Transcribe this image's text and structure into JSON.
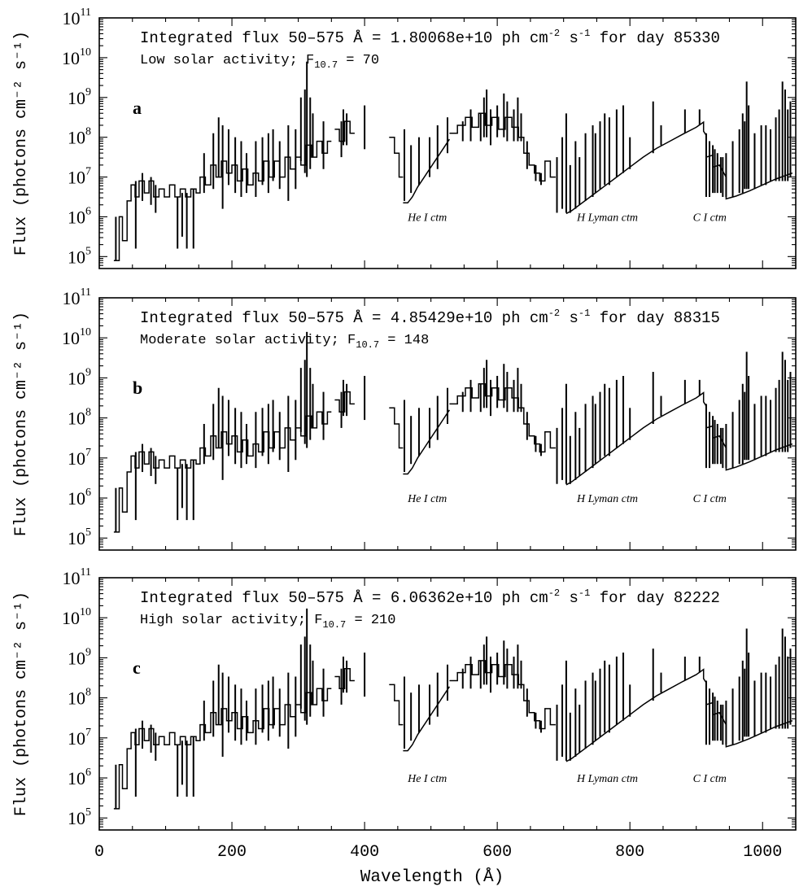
{
  "chart_data": {
    "type": "line",
    "xlabel": "Wavelength (Å)",
    "ylabel": "Flux (photons cm⁻² s⁻¹)",
    "xlim": [
      0,
      1050
    ],
    "ylim_log10": [
      4.7,
      11
    ],
    "y_scale": "log",
    "x_ticks": [
      0,
      200,
      400,
      600,
      800,
      1000
    ],
    "y_tick_exponents": [
      5,
      6,
      7,
      8,
      9,
      10,
      11
    ],
    "y_tick_base": "10",
    "grid": false,
    "panels": [
      {
        "letter": "a",
        "note_pre": "Integrated flux 50–575 Å = 1.80068e+10 ph cm",
        "note_exp1": "-2",
        "note_mid": " s",
        "note_exp2": "-1",
        "note_post": " for day 85330",
        "activity_pre": "Low solar activity; F",
        "activity_sub": "10.7",
        "activity_post": " = 70",
        "scale": 0.0,
        "labels": [
          {
            "text": "He I ctm",
            "x": 465,
            "y_log": 5.9
          },
          {
            "text": "H Lyman ctm",
            "x": 720,
            "y_log": 5.9
          },
          {
            "text": "C I ctm",
            "x": 895,
            "y_log": 5.9
          }
        ]
      },
      {
        "letter": "b",
        "note_pre": "Integrated flux 50–575 Å = 4.85429e+10 ph cm",
        "note_exp1": "-2",
        "note_mid": " s",
        "note_exp2": "-1",
        "note_post": " for day 88315",
        "activity_pre": "Moderate solar activity; F",
        "activity_sub": "10.7",
        "activity_post": " = 148",
        "scale": 0.25,
        "labels": [
          {
            "text": "He I ctm",
            "x": 465,
            "y_log": 5.9
          },
          {
            "text": "H Lyman ctm",
            "x": 720,
            "y_log": 5.9
          },
          {
            "text": "C I ctm",
            "x": 895,
            "y_log": 5.9
          }
        ]
      },
      {
        "letter": "c",
        "note_pre": "Integrated flux 50–575 Å = 6.06362e+10 ph cm",
        "note_exp1": "-2",
        "note_mid": " s",
        "note_exp2": "-1",
        "note_post": " for day 82222",
        "activity_pre": "High solar activity; F",
        "activity_sub": "10.7",
        "activity_post": " = 210",
        "scale": 0.33,
        "labels": [
          {
            "text": "He I ctm",
            "x": 465,
            "y_log": 5.9
          },
          {
            "text": "H Lyman ctm",
            "x": 720,
            "y_log": 5.9
          },
          {
            "text": "C I ctm",
            "x": 895,
            "y_log": 5.9
          }
        ]
      }
    ],
    "segments": [
      [
        [
          22,
          4.9
        ],
        [
          30,
          4.9
        ],
        [
          30,
          6.0
        ],
        [
          35,
          6.0
        ],
        [
          35,
          5.4
        ],
        [
          42,
          5.4
        ],
        [
          42,
          6.4
        ],
        [
          48,
          6.4
        ],
        [
          48,
          6.8
        ],
        [
          54,
          6.8
        ],
        [
          54,
          6.5
        ],
        [
          60,
          6.5
        ],
        [
          60,
          6.9
        ],
        [
          68,
          6.9
        ],
        [
          68,
          6.6
        ],
        [
          75,
          6.6
        ],
        [
          75,
          6.9
        ],
        [
          82,
          6.9
        ],
        [
          82,
          6.5
        ],
        [
          90,
          6.5
        ],
        [
          90,
          6.7
        ],
        [
          98,
          6.7
        ],
        [
          98,
          6.5
        ],
        [
          106,
          6.5
        ],
        [
          106,
          6.8
        ],
        [
          114,
          6.8
        ],
        [
          114,
          6.5
        ],
        [
          122,
          6.5
        ],
        [
          122,
          6.7
        ],
        [
          130,
          6.7
        ],
        [
          130,
          6.5
        ],
        [
          138,
          6.5
        ],
        [
          138,
          6.7
        ],
        [
          146,
          6.7
        ],
        [
          146,
          6.6
        ],
        [
          152,
          6.6
        ],
        [
          152,
          7.0
        ],
        [
          160,
          7.0
        ],
        [
          160,
          6.8
        ],
        [
          168,
          6.8
        ],
        [
          168,
          7.3
        ],
        [
          176,
          7.3
        ],
        [
          176,
          7.0
        ],
        [
          184,
          7.0
        ],
        [
          184,
          7.4
        ],
        [
          192,
          7.4
        ],
        [
          192,
          7.1
        ],
        [
          200,
          7.1
        ],
        [
          200,
          7.3
        ],
        [
          208,
          7.3
        ],
        [
          208,
          6.9
        ],
        [
          216,
          6.9
        ],
        [
          216,
          7.2
        ],
        [
          224,
          7.2
        ],
        [
          224,
          6.8
        ],
        [
          232,
          6.8
        ],
        [
          232,
          7.1
        ],
        [
          240,
          7.1
        ],
        [
          240,
          6.9
        ],
        [
          248,
          6.9
        ],
        [
          248,
          7.4
        ],
        [
          256,
          7.4
        ],
        [
          256,
          7.0
        ],
        [
          264,
          7.0
        ],
        [
          264,
          7.4
        ],
        [
          272,
          7.4
        ],
        [
          272,
          7.0
        ],
        [
          280,
          7.0
        ],
        [
          280,
          7.5
        ],
        [
          288,
          7.5
        ],
        [
          288,
          7.2
        ],
        [
          296,
          7.2
        ],
        [
          296,
          7.5
        ],
        [
          304,
          7.5
        ],
        [
          304,
          7.3
        ],
        [
          312,
          7.3
        ],
        [
          312,
          7.8
        ],
        [
          320,
          7.8
        ],
        [
          320,
          7.5
        ],
        [
          328,
          7.5
        ],
        [
          328,
          7.9
        ],
        [
          336,
          7.9
        ],
        [
          336,
          7.6
        ],
        [
          344,
          7.6
        ],
        [
          344,
          7.9
        ],
        [
          350,
          7.9
        ]
      ],
      [
        [
          355,
          8.2
        ],
        [
          362,
          8.2
        ],
        [
          362,
          7.9
        ],
        [
          370,
          7.9
        ],
        [
          370,
          8.4
        ],
        [
          378,
          8.4
        ],
        [
          378,
          8.1
        ],
        [
          385,
          8.1
        ]
      ],
      [
        [
          437,
          8.0
        ],
        [
          445,
          8.0
        ],
        [
          445,
          7.6
        ],
        [
          452,
          7.6
        ],
        [
          452,
          7.0
        ],
        [
          458,
          7.0
        ]
      ],
      [
        [
          458,
          6.35
        ],
        [
          465,
          6.35
        ],
        [
          472,
          6.5
        ],
        [
          480,
          6.75
        ],
        [
          490,
          7.0
        ],
        [
          500,
          7.25
        ],
        [
          510,
          7.5
        ],
        [
          520,
          7.75
        ],
        [
          528,
          7.95
        ]
      ],
      [
        [
          528,
          8.1
        ],
        [
          540,
          8.1
        ],
        [
          540,
          8.3
        ],
        [
          552,
          8.3
        ],
        [
          552,
          8.5
        ],
        [
          562,
          8.5
        ],
        [
          562,
          8.25
        ],
        [
          572,
          8.25
        ],
        [
          572,
          8.6
        ],
        [
          582,
          8.6
        ],
        [
          582,
          8.3
        ],
        [
          592,
          8.3
        ],
        [
          592,
          8.5
        ],
        [
          602,
          8.5
        ],
        [
          602,
          8.2
        ],
        [
          612,
          8.2
        ],
        [
          612,
          8.5
        ],
        [
          622,
          8.5
        ],
        [
          622,
          8.25
        ],
        [
          632,
          8.25
        ],
        [
          632,
          8.0
        ],
        [
          640,
          8.0
        ],
        [
          640,
          7.6
        ],
        [
          648,
          7.6
        ],
        [
          648,
          7.3
        ],
        [
          656,
          7.3
        ],
        [
          656,
          7.1
        ],
        [
          664,
          7.1
        ],
        [
          664,
          6.9
        ],
        [
          672,
          6.9
        ],
        [
          672,
          7.4
        ],
        [
          680,
          7.4
        ],
        [
          680,
          7.0
        ],
        [
          688,
          7.0
        ]
      ],
      [
        [
          704,
          6.08
        ],
        [
          712,
          6.15
        ],
        [
          740,
          6.5
        ],
        [
          760,
          6.75
        ],
        [
          780,
          7.0
        ],
        [
          800,
          7.25
        ],
        [
          820,
          7.5
        ],
        [
          840,
          7.72
        ],
        [
          860,
          7.9
        ],
        [
          880,
          8.08
        ],
        [
          900,
          8.25
        ],
        [
          911,
          8.38
        ],
        [
          911,
          8.15
        ],
        [
          915,
          8.05
        ],
        [
          915,
          7.5
        ],
        [
          925,
          7.55
        ],
        [
          925,
          7.25
        ],
        [
          935,
          7.3
        ],
        [
          945,
          7.0
        ],
        [
          945,
          6.45
        ],
        [
          960,
          6.52
        ],
        [
          980,
          6.65
        ],
        [
          1000,
          6.8
        ],
        [
          1020,
          6.95
        ],
        [
          1045,
          7.1
        ]
      ]
    ],
    "spikes": [
      [
        25,
        4.9,
        6.0
      ],
      [
        55,
        5.2,
        6.9
      ],
      [
        65,
        6.4,
        7.1
      ],
      [
        78,
        6.3,
        7.0
      ],
      [
        85,
        6.1,
        6.8
      ],
      [
        118,
        5.2,
        6.5
      ],
      [
        125,
        5.5,
        6.6
      ],
      [
        132,
        5.2,
        6.6
      ],
      [
        142,
        5.2,
        6.7
      ],
      [
        158,
        6.6,
        7.6
      ],
      [
        172,
        6.7,
        8.1
      ],
      [
        180,
        7.0,
        8.5
      ],
      [
        186,
        6.2,
        8.3
      ],
      [
        195,
        6.8,
        8.2
      ],
      [
        205,
        6.6,
        8.0
      ],
      [
        214,
        6.5,
        7.9
      ],
      [
        222,
        6.6,
        7.6
      ],
      [
        236,
        6.5,
        7.9
      ],
      [
        246,
        6.8,
        8.0
      ],
      [
        255,
        6.6,
        8.1
      ],
      [
        262,
        6.9,
        8.2
      ],
      [
        272,
        6.7,
        7.9
      ],
      [
        285,
        6.4,
        8.3
      ],
      [
        296,
        6.7,
        8.2
      ],
      [
        304,
        7.4,
        9.0
      ],
      [
        310,
        7.1,
        9.2
      ],
      [
        313,
        7.0,
        9.9
      ],
      [
        318,
        7.2,
        9.0
      ],
      [
        322,
        7.5,
        8.6
      ],
      [
        338,
        7.2,
        8.4
      ],
      [
        365,
        7.5,
        8.4
      ],
      [
        368,
        7.8,
        8.7
      ],
      [
        373,
        7.8,
        8.6
      ],
      [
        400,
        7.7,
        8.8
      ],
      [
        460,
        6.4,
        8.2
      ],
      [
        470,
        6.6,
        7.8
      ],
      [
        482,
        6.8,
        8.0
      ],
      [
        498,
        7.0,
        8.0
      ],
      [
        510,
        7.2,
        8.3
      ],
      [
        525,
        7.6,
        8.5
      ],
      [
        548,
        7.9,
        8.4
      ],
      [
        560,
        7.9,
        8.7
      ],
      [
        575,
        7.9,
        8.6
      ],
      [
        580,
        8.0,
        9.0
      ],
      [
        584,
        8.0,
        9.2
      ],
      [
        590,
        7.8,
        8.7
      ],
      [
        600,
        8.0,
        8.8
      ],
      [
        610,
        8.0,
        9.1
      ],
      [
        615,
        7.9,
        8.9
      ],
      [
        625,
        7.9,
        8.7
      ],
      [
        631,
        7.9,
        9.0
      ],
      [
        636,
        7.9,
        8.6
      ],
      [
        645,
        7.2,
        7.9
      ],
      [
        658,
        6.9,
        7.3
      ],
      [
        666,
        6.8,
        7.1
      ],
      [
        690,
        6.1,
        7.5
      ],
      [
        698,
        6.2,
        8.0
      ],
      [
        704,
        6.1,
        8.6
      ],
      [
        710,
        6.1,
        7.3
      ],
      [
        718,
        6.2,
        7.9
      ],
      [
        724,
        6.3,
        7.5
      ],
      [
        733,
        6.4,
        8.1
      ],
      [
        744,
        6.5,
        8.3
      ],
      [
        748,
        6.6,
        8.1
      ],
      [
        755,
        6.7,
        8.4
      ],
      [
        762,
        6.8,
        8.6
      ],
      [
        769,
        6.8,
        8.5
      ],
      [
        780,
        7.0,
        8.7
      ],
      [
        790,
        7.1,
        8.8
      ],
      [
        800,
        7.2,
        8.0
      ],
      [
        835,
        7.6,
        8.9
      ],
      [
        847,
        7.8,
        8.3
      ],
      [
        883,
        8.1,
        8.7
      ],
      [
        905,
        8.3,
        8.7
      ],
      [
        915,
        6.5,
        8.1
      ],
      [
        920,
        6.5,
        7.9
      ],
      [
        925,
        6.6,
        7.8
      ],
      [
        928,
        6.6,
        7.7
      ],
      [
        932,
        6.6,
        7.6
      ],
      [
        937,
        6.6,
        7.5
      ],
      [
        940,
        6.5,
        7.5
      ],
      [
        945,
        6.5,
        7.6
      ],
      [
        955,
        6.5,
        7.9
      ],
      [
        965,
        6.6,
        8.2
      ],
      [
        970,
        6.6,
        8.6
      ],
      [
        973,
        6.7,
        8.4
      ],
      [
        976,
        6.7,
        9.4
      ],
      [
        979,
        6.7,
        8.8
      ],
      [
        988,
        6.7,
        8.1
      ],
      [
        998,
        6.8,
        8.3
      ],
      [
        1005,
        6.8,
        8.3
      ],
      [
        1012,
        6.9,
        8.2
      ],
      [
        1020,
        6.9,
        8.5
      ],
      [
        1025,
        6.9,
        8.7
      ],
      [
        1030,
        6.9,
        9.4
      ],
      [
        1034,
        6.9,
        9.2
      ],
      [
        1038,
        6.9,
        8.7
      ],
      [
        1042,
        7.0,
        8.9
      ]
    ]
  }
}
